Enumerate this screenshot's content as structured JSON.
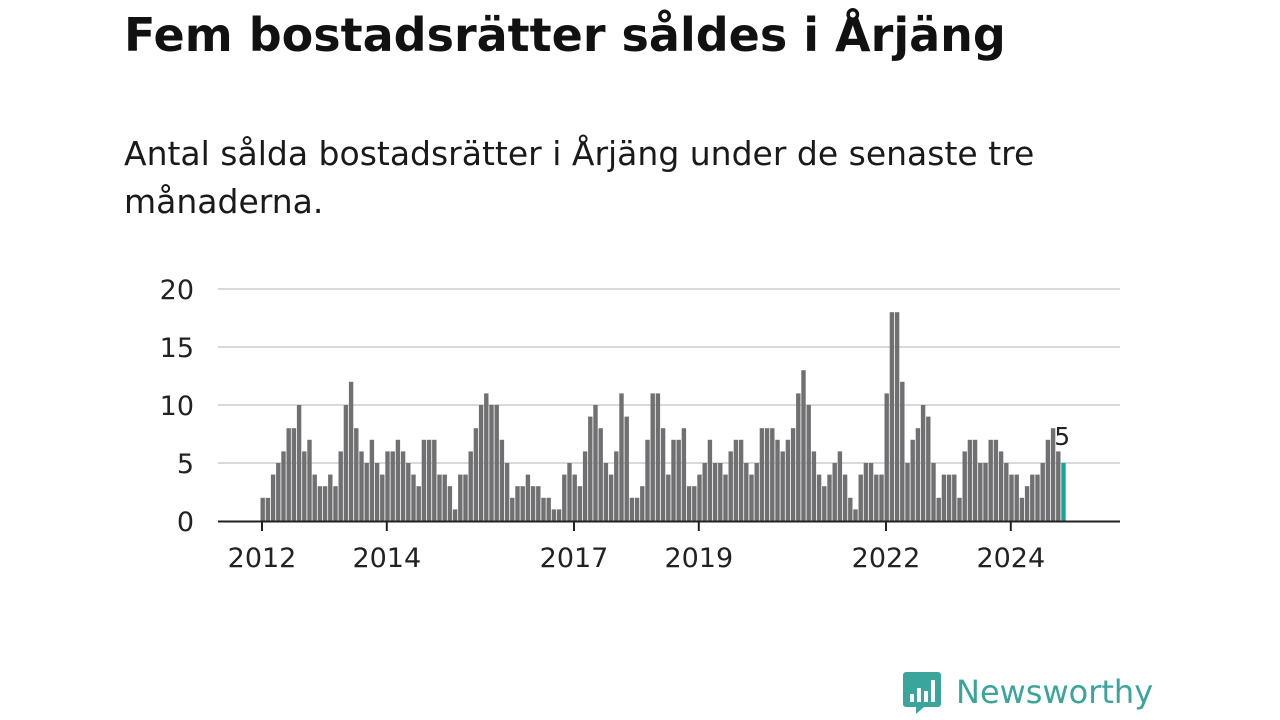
{
  "title": "Fem bostadsrätter såldes i Årjäng",
  "subtitle": "Antal sålda bostadsrätter i Årjäng under de senaste tre månaderna.",
  "brand": {
    "name": "Newsworthy",
    "color": "#3aa59a",
    "icon": "newsworthy-bar-chart-icon"
  },
  "colors": {
    "bar": "#707073",
    "highlight": "#1aa39b",
    "grid": "#d9d9d9",
    "axis": "#222222"
  },
  "chart_data": {
    "type": "bar",
    "x_unit": "month",
    "start": "2012-01",
    "end": "2025-03",
    "ylim": [
      0,
      20
    ],
    "yticks": [
      0,
      5,
      10,
      15,
      20
    ],
    "xtick_labels": [
      "2012",
      "2014",
      "2017",
      "2019",
      "2022",
      "2024"
    ],
    "grid": true,
    "highlight_label": "5",
    "values": [
      2,
      2,
      4,
      5,
      6,
      8,
      8,
      10,
      6,
      7,
      4,
      3,
      3,
      4,
      3,
      6,
      10,
      12,
      8,
      6,
      5,
      7,
      5,
      4,
      6,
      6,
      7,
      6,
      5,
      4,
      3,
      7,
      7,
      7,
      4,
      4,
      3,
      1,
      4,
      4,
      6,
      8,
      10,
      11,
      10,
      10,
      7,
      5,
      2,
      3,
      3,
      4,
      3,
      3,
      2,
      2,
      1,
      1,
      4,
      5,
      4,
      3,
      6,
      9,
      10,
      8,
      5,
      4,
      6,
      11,
      9,
      2,
      2,
      3,
      7,
      11,
      11,
      8,
      4,
      7,
      7,
      8,
      3,
      3,
      4,
      5,
      7,
      5,
      5,
      4,
      6,
      7,
      7,
      5,
      4,
      5,
      8,
      8,
      8,
      7,
      6,
      7,
      8,
      11,
      13,
      10,
      6,
      4,
      3,
      4,
      5,
      6,
      4,
      2,
      1,
      4,
      5,
      5,
      4,
      4,
      11,
      18,
      18,
      12,
      5,
      7,
      8,
      10,
      9,
      5,
      2,
      4,
      4,
      4,
      2,
      6,
      7,
      7,
      5,
      5,
      7,
      7,
      6,
      5,
      4,
      4,
      2,
      3,
      4,
      4,
      5,
      7,
      8,
      6,
      5
    ]
  }
}
